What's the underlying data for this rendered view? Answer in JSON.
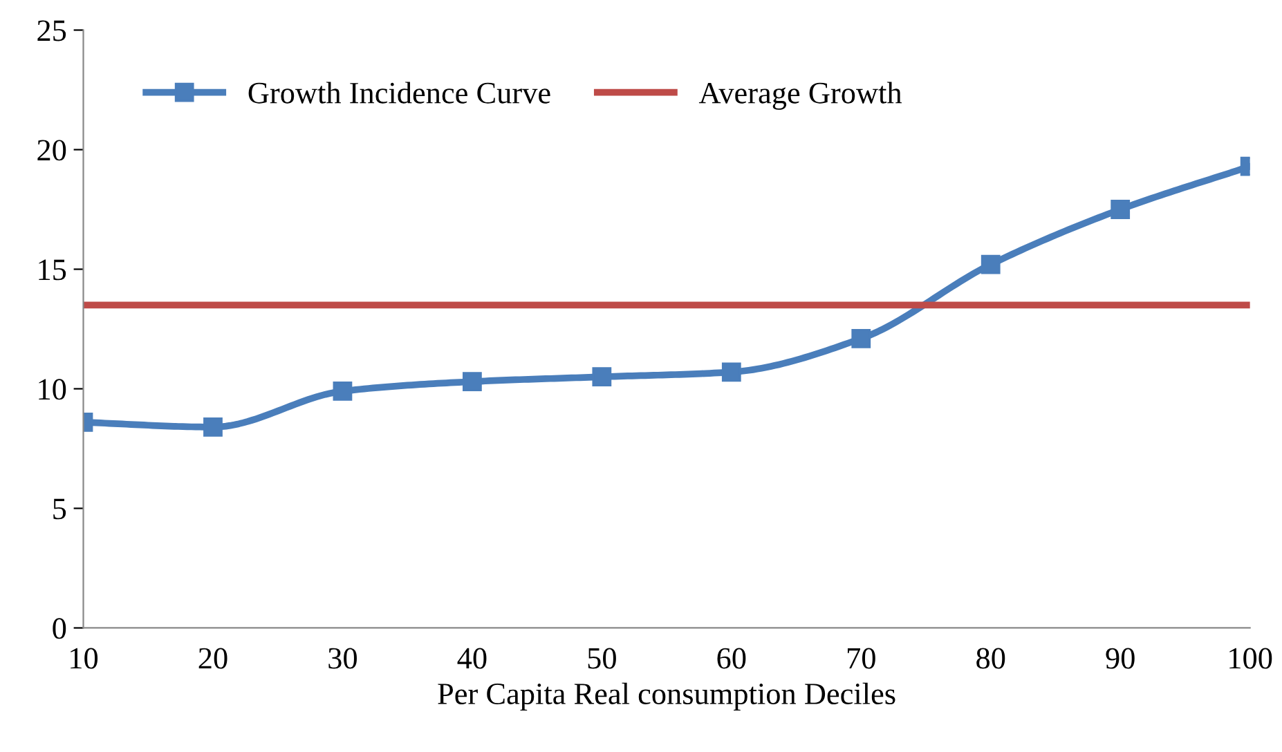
{
  "chart_data": {
    "type": "line",
    "xlabel": "Per Capita Real consumption Deciles",
    "x": [
      10,
      20,
      30,
      40,
      50,
      60,
      70,
      80,
      90,
      100
    ],
    "series": [
      {
        "name": "Growth Incidence Curve",
        "color": "#4a7ebb",
        "marker": "square",
        "values": [
          8.6,
          8.4,
          9.9,
          10.3,
          10.5,
          10.7,
          12.1,
          15.2,
          17.5,
          19.3
        ]
      },
      {
        "name": "Average Growth",
        "color": "#be4b48",
        "marker": "none",
        "values": [
          13.5,
          13.5,
          13.5,
          13.5,
          13.5,
          13.5,
          13.5,
          13.5,
          13.5,
          13.5
        ]
      }
    ],
    "xlim": [
      10,
      100
    ],
    "xticks": [
      10,
      20,
      30,
      40,
      50,
      60,
      70,
      80,
      90,
      100
    ],
    "ylim": [
      0,
      25
    ],
    "yticks": [
      0,
      5,
      10,
      15,
      20,
      25
    ],
    "grid": false,
    "legend": "top left"
  }
}
